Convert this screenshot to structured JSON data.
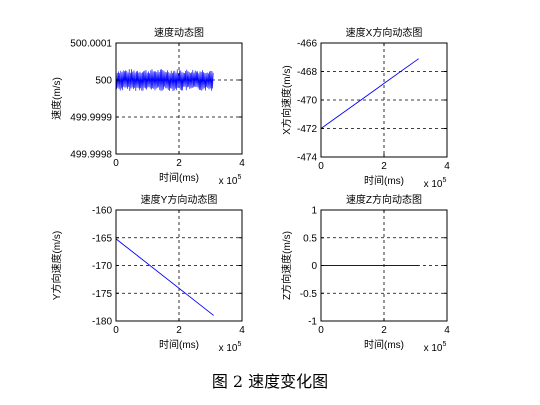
{
  "caption": "图 2  速度变化图",
  "chart_data": [
    {
      "type": "line",
      "title": "速度动态图",
      "xlabel": "时间(ms)",
      "ylabel": "速度(m/s)",
      "x_multiplier": "x 10",
      "x_multiplier_exp": "5",
      "xlim": [
        0,
        400000
      ],
      "ylim": [
        499.9998,
        500.0001
      ],
      "xticks": [
        0,
        200000,
        400000
      ],
      "xticklabels": [
        "0",
        "2",
        "4"
      ],
      "yticks": [
        499.9998,
        499.9999,
        500,
        500.0001
      ],
      "yticklabels": [
        "499.9998",
        "499.9999",
        "500",
        "500.0001"
      ],
      "grid": true,
      "color": "#0000ff",
      "series": [
        {
          "kind": "noise_band",
          "x_range": [
            0,
            310000
          ],
          "center": 500.0,
          "amplitude": 3e-05,
          "x": [
            0,
            310000
          ],
          "y": [
            500.0,
            500.0
          ]
        }
      ]
    },
    {
      "type": "line",
      "title": "速度X方向动态图",
      "xlabel": "时间(ms)",
      "ylabel": "X方向速度(m/s)",
      "x_multiplier": "x 10",
      "x_multiplier_exp": "5",
      "xlim": [
        0,
        400000
      ],
      "ylim": [
        -474,
        -466
      ],
      "xticks": [
        0,
        200000,
        400000
      ],
      "xticklabels": [
        "0",
        "2",
        "4"
      ],
      "yticks": [
        -474,
        -472,
        -470,
        -468,
        -466
      ],
      "yticklabels": [
        "-474",
        "-472",
        "-470",
        "-468",
        "-466"
      ],
      "grid": true,
      "color": "#0000ff",
      "series": [
        {
          "x": [
            0,
            310000
          ],
          "y": [
            -472.0,
            -467.1
          ]
        }
      ]
    },
    {
      "type": "line",
      "title": "速度Y方向动态图",
      "xlabel": "时间(ms)",
      "ylabel": "Y方向速度(m/s)",
      "x_multiplier": "x 10",
      "x_multiplier_exp": "5",
      "xlim": [
        0,
        400000
      ],
      "ylim": [
        -180,
        -160
      ],
      "xticks": [
        0,
        200000,
        400000
      ],
      "xticklabels": [
        "0",
        "2",
        "4"
      ],
      "yticks": [
        -180,
        -175,
        -170,
        -165,
        -160
      ],
      "yticklabels": [
        "-180",
        "-175",
        "-170",
        "-165",
        "-160"
      ],
      "grid": true,
      "color": "#0000ff",
      "series": [
        {
          "x": [
            0,
            310000
          ],
          "y": [
            -165.2,
            -179.0
          ]
        }
      ]
    },
    {
      "type": "line",
      "title": "速度Z方向动态图",
      "xlabel": "时间(ms)",
      "ylabel": "Z方向速度(m/s)",
      "x_multiplier": "x 10",
      "x_multiplier_exp": "5",
      "xlim": [
        0,
        400000
      ],
      "ylim": [
        -1,
        1
      ],
      "xticks": [
        0,
        200000,
        400000
      ],
      "xticklabels": [
        "0",
        "2",
        "4"
      ],
      "yticks": [
        -1,
        -0.5,
        0,
        0.5,
        1
      ],
      "yticklabels": [
        "-1",
        "-0.5",
        "0",
        "0.5",
        "1"
      ],
      "grid": true,
      "color": "#0000ff",
      "series": [
        {
          "x": [
            0,
            310000
          ],
          "y": [
            0,
            0
          ]
        }
      ]
    }
  ]
}
